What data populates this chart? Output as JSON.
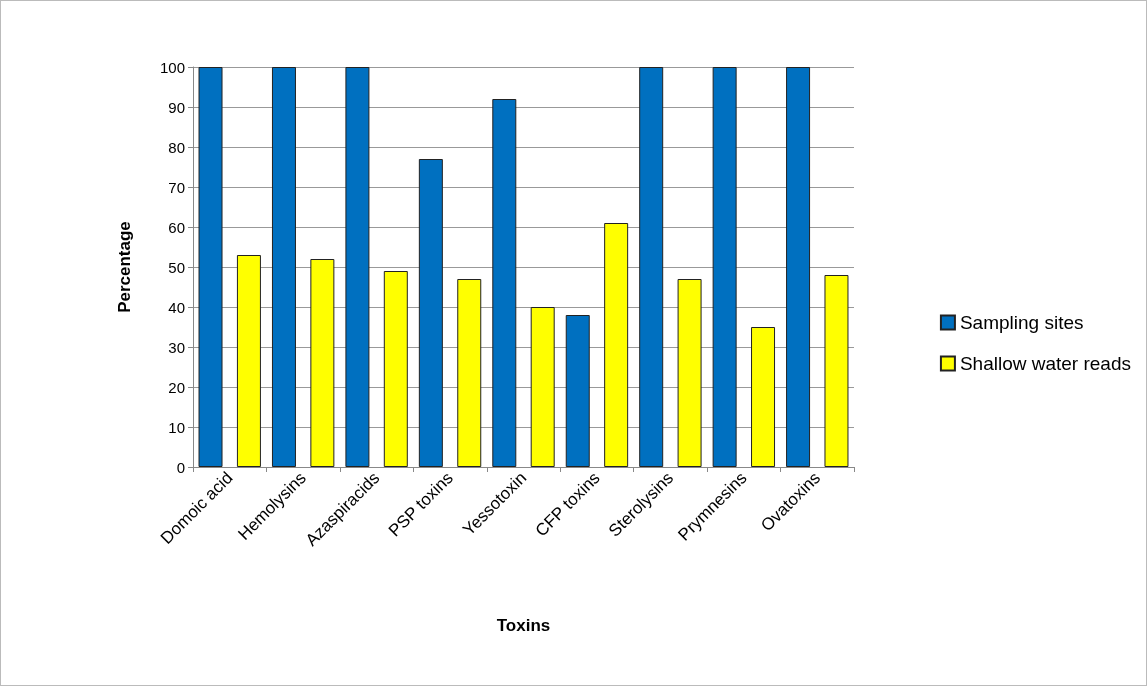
{
  "chart_data": {
    "type": "bar",
    "xlabel": "Toxins",
    "ylabel": "Percentage",
    "categories": [
      "Domoic acid",
      "Hemolysins",
      "Azaspiracids",
      "PSP toxins",
      "Yessotoxin",
      "CFP toxins",
      "Sterolysins",
      "Prymnesins",
      "Ovatoxins"
    ],
    "series": [
      {
        "name": "Sampling sites",
        "color": "#0070c0",
        "values": [
          100,
          100,
          100,
          77,
          92,
          38,
          100,
          100,
          100
        ]
      },
      {
        "name": "Shallow water reads",
        "color": "#ffff00",
        "values": [
          53,
          52,
          49,
          47,
          40,
          61,
          47,
          35,
          48
        ]
      }
    ],
    "ylim": [
      0,
      100
    ],
    "yticks": [
      0,
      10,
      20,
      30,
      40,
      50,
      60,
      70,
      80,
      90,
      100
    ],
    "grid": "y",
    "legend": "right"
  }
}
